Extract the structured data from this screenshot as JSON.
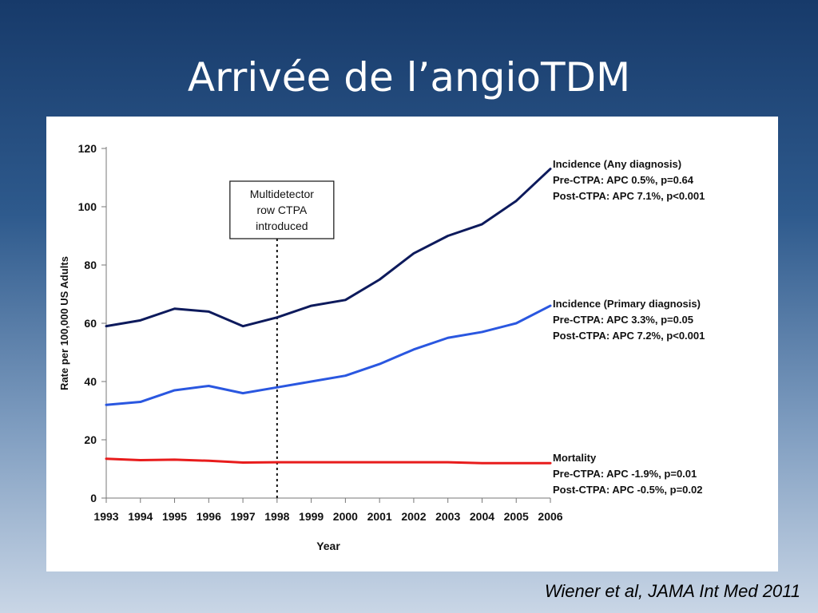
{
  "slide": {
    "title": "Arrivée de l’angioTDM",
    "citation": "Wiener et al, JAMA Int Med 2011"
  },
  "chart_data": {
    "type": "line",
    "x": [
      1993,
      1994,
      1995,
      1996,
      1997,
      1998,
      1999,
      2000,
      2001,
      2002,
      2003,
      2004,
      2005,
      2006
    ],
    "xticks": [
      "1993",
      "1994",
      "1995",
      "1996",
      "1997",
      "1998",
      "1999",
      "2000",
      "2001",
      "2002",
      "2003",
      "2004",
      "2005",
      "2006"
    ],
    "yticks": [
      "0",
      "20",
      "40",
      "60",
      "80",
      "100",
      "120"
    ],
    "xlabel": "Year",
    "ylabel": "Rate per 100,000 US Adults",
    "ylim": [
      0,
      120
    ],
    "grid": false,
    "series": [
      {
        "name": "Incidence (Any diagnosis)",
        "color": "#0d1a5c",
        "values": [
          59,
          61,
          65,
          64,
          59,
          62,
          66,
          68,
          75,
          84,
          90,
          94,
          102,
          113
        ],
        "notes": [
          "Pre-CTPA: APC 0.5%, p=0.64",
          "Post-CTPA: APC 7.1%, p<0.001"
        ]
      },
      {
        "name": "Incidence (Primary diagnosis)",
        "color": "#2a57e0",
        "values": [
          32,
          33,
          37,
          38.5,
          36,
          38,
          40,
          42,
          46,
          51,
          55,
          57,
          60,
          66
        ],
        "notes": [
          "Pre-CTPA: APC 3.3%, p=0.05",
          "Post-CTPA: APC 7.2%, p<0.001"
        ]
      },
      {
        "name": "Mortality",
        "color": "#e81c1c",
        "values": [
          13.5,
          13,
          13.2,
          12.8,
          12.2,
          12.3,
          12.3,
          12.3,
          12.3,
          12.3,
          12.3,
          12,
          12,
          12
        ],
        "notes": [
          "Pre-CTPA: APC -1.9%, p=0.01",
          "Post-CTPA: APC -0.5%, p=0.02"
        ]
      }
    ],
    "annotation": {
      "x": 1998,
      "lines": [
        "Multidetector",
        "row CTPA",
        "introduced"
      ]
    }
  }
}
